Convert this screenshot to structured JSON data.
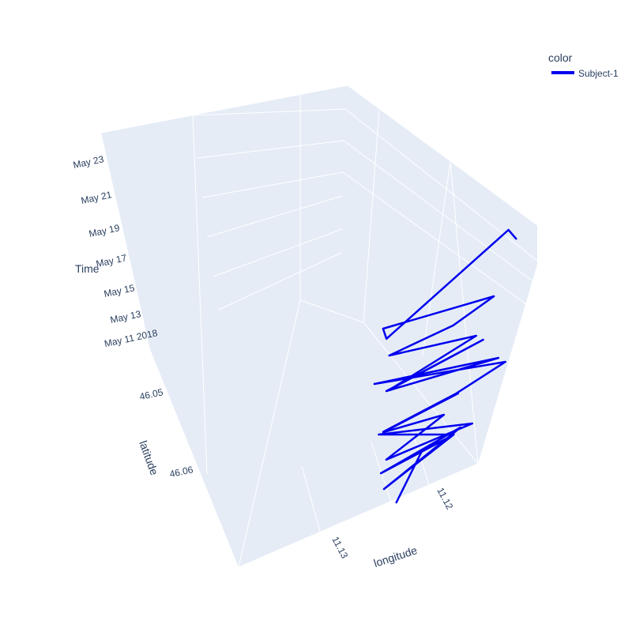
{
  "colors": {
    "series": "#0000ee",
    "pane": "#e5ecf6",
    "grid": "#ffffff",
    "text": "#2a3f5f"
  },
  "legend": {
    "title": "color",
    "placement": "top-right"
  },
  "chart_data": {
    "type": "line",
    "subtype": "3d-trajectory",
    "title": "",
    "axes": {
      "x": {
        "label": "longitude",
        "ticks": [
          "11.12",
          "11.13"
        ]
      },
      "y": {
        "label": "latitude",
        "ticks": [
          "46.05",
          "46.06"
        ]
      },
      "z": {
        "label": "Time",
        "ticks": [
          "May 11 2018",
          "May 13",
          "May 15",
          "May 17",
          "May 19",
          "May 21",
          "May 23"
        ]
      }
    },
    "grid": true,
    "series": [
      {
        "name": "Subject-1",
        "points": [
          [
            "2018-05-11",
            11.1255,
            46.058
          ],
          [
            "2018-05-11",
            11.121,
            46.05
          ],
          [
            "2018-05-11",
            11.118,
            46.049
          ],
          [
            "2018-05-11",
            11.122,
            46.052
          ],
          [
            "2018-05-12",
            11.1185,
            46.051
          ],
          [
            "2018-05-12",
            11.126,
            46.054
          ],
          [
            "2018-05-12",
            11.1175,
            46.05
          ],
          [
            "2018-05-12",
            11.1265,
            46.057
          ],
          [
            "2018-05-13",
            11.119,
            46.053
          ],
          [
            "2018-05-13",
            11.125,
            46.049
          ],
          [
            "2018-05-13",
            11.117,
            46.052
          ],
          [
            "2018-05-14",
            11.1262,
            46.056
          ],
          [
            "2018-05-14",
            11.1195,
            46.051
          ],
          [
            "2018-05-15",
            11.1258,
            46.053
          ],
          [
            "2018-05-15",
            11.118,
            46.05
          ],
          [
            "2018-05-16",
            11.1264,
            46.055
          ],
          [
            "2018-05-16",
            11.1188,
            46.052
          ],
          [
            "2018-05-17",
            11.114,
            46.051
          ],
          [
            "2018-05-17",
            11.1255,
            46.048
          ],
          [
            "2018-05-18",
            11.115,
            46.052
          ],
          [
            "2018-05-18",
            11.1255,
            46.052
          ],
          [
            "2018-05-19",
            11.116,
            46.05
          ],
          [
            "2018-05-19",
            11.1258,
            46.054
          ],
          [
            "2018-05-20",
            11.117,
            46.051
          ],
          [
            "2018-05-21",
            11.1255,
            46.052
          ],
          [
            "2018-05-21",
            11.119,
            46.05
          ],
          [
            "2018-05-22",
            11.115,
            46.049
          ],
          [
            "2018-05-23",
            11.126,
            46.051
          ],
          [
            "2018-05-23",
            11.1262,
            46.053
          ],
          [
            "2018-05-24",
            11.112,
            46.042
          ],
          [
            "2018-05-24",
            11.1118,
            46.044
          ]
        ]
      }
    ]
  }
}
